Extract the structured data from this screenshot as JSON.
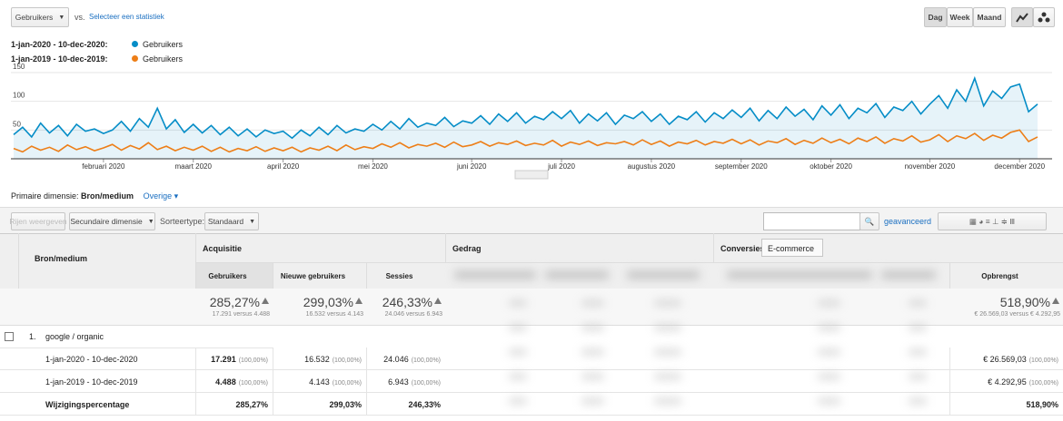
{
  "toolbar": {
    "metric": "Gebruikers",
    "vs": "vs.",
    "select_metric": "Selecteer een statistiek",
    "buttons": [
      "Dag",
      "Week",
      "Maand"
    ]
  },
  "chart_data": {
    "type": "line",
    "categories": [
      null,
      null,
      null,
      null,
      null,
      null,
      null,
      null,
      null,
      null,
      "februari 2020",
      null,
      null,
      null,
      null,
      null,
      null,
      null,
      null,
      null,
      "maart 2020",
      null,
      null,
      null,
      null,
      null,
      null,
      null,
      null,
      null,
      "april 2020",
      null,
      null,
      null,
      null,
      null,
      null,
      null,
      null,
      null,
      "mei 2020",
      null,
      null,
      null,
      null,
      null,
      null,
      null,
      null,
      null,
      null,
      "juni 2020",
      null,
      null,
      null,
      null,
      null,
      null,
      null,
      null,
      null,
      "juli 2020",
      null,
      null,
      null,
      null,
      null,
      null,
      null,
      null,
      null,
      "augustus 2020",
      null,
      null,
      null,
      null,
      null,
      null,
      null,
      null,
      null,
      "september 2020",
      null,
      null,
      null,
      null,
      null,
      null,
      null,
      null,
      null,
      "oktober 2020",
      null,
      null,
      null,
      null,
      null,
      null,
      null,
      null,
      null,
      null,
      "november 2020",
      null,
      null,
      null,
      null,
      null,
      null,
      null,
      null,
      null,
      "december 2020",
      null,
      null
    ],
    "series": [
      {
        "name": "Gebruikers",
        "period": "1-jan-2020 - 10-dec-2020:",
        "color": "#058dc7",
        "values": [
          42,
          55,
          38,
          62,
          45,
          58,
          40,
          60,
          48,
          52,
          44,
          50,
          65,
          48,
          70,
          55,
          88,
          52,
          68,
          46,
          60,
          45,
          58,
          42,
          55,
          40,
          52,
          38,
          50,
          44,
          48,
          36,
          50,
          40,
          55,
          42,
          58,
          45,
          52,
          48,
          60,
          50,
          65,
          52,
          70,
          55,
          62,
          58,
          72,
          56,
          66,
          62,
          75,
          60,
          78,
          65,
          80,
          62,
          74,
          68,
          82,
          70,
          84,
          62,
          78,
          66,
          80,
          60,
          76,
          70,
          82,
          65,
          78,
          60,
          74,
          68,
          82,
          64,
          80,
          70,
          85,
          72,
          88,
          66,
          84,
          70,
          90,
          74,
          86,
          68,
          92,
          76,
          94,
          70,
          88,
          80,
          96,
          72,
          90,
          84,
          100,
          78,
          95,
          110,
          88,
          120,
          100,
          140,
          92,
          118,
          105,
          125,
          130,
          82,
          95
        ]
      },
      {
        "name": "Gebruikers",
        "period": "1-jan-2019 - 10-dec-2019:",
        "color": "#ed7e17",
        "values": [
          18,
          12,
          22,
          15,
          20,
          13,
          24,
          16,
          21,
          14,
          19,
          25,
          15,
          23,
          17,
          28,
          16,
          22,
          14,
          20,
          15,
          22,
          13,
          20,
          12,
          18,
          14,
          21,
          13,
          19,
          14,
          20,
          12,
          19,
          15,
          22,
          14,
          24,
          16,
          21,
          18,
          26,
          20,
          28,
          19,
          25,
          22,
          27,
          20,
          29,
          21,
          24,
          30,
          22,
          28,
          25,
          31,
          23,
          27,
          24,
          32,
          22,
          29,
          25,
          31,
          23,
          28,
          26,
          30,
          24,
          33,
          25,
          31,
          22,
          29,
          26,
          32,
          24,
          30,
          27,
          34,
          26,
          33,
          24,
          31,
          28,
          35,
          25,
          32,
          27,
          36,
          28,
          34,
          26,
          36,
          30,
          38,
          27,
          35,
          31,
          40,
          29,
          33,
          42,
          30,
          40,
          35,
          44,
          32,
          41,
          36,
          46,
          50,
          30,
          38
        ]
      }
    ],
    "ylim": [
      0,
      150
    ],
    "yticks": [
      50,
      100,
      150
    ],
    "grid": true
  },
  "dimension": {
    "label": "Primaire dimensie:",
    "value": "Bron/medium",
    "other": "Overige"
  },
  "controls": {
    "rows": "Rijen weergeven",
    "secondary": "Secundaire dimensie",
    "sort_label": "Sorteertype:",
    "sort": "Standaard",
    "advanced": "geavanceerd"
  },
  "table": {
    "dimension_header": "Bron/medium",
    "groups": [
      "Acquisitie",
      "Gedrag",
      "Conversies"
    ],
    "conversion_select": "E-commerce",
    "columns": [
      "Gebruikers",
      "Nieuwe gebruikers",
      "Sessies",
      "Opbrengst"
    ],
    "summary": [
      {
        "change": "285,27%",
        "detail": "17.291 versus 4.488"
      },
      {
        "change": "299,03%",
        "detail": "16.532 versus 4.143"
      },
      {
        "change": "246,33%",
        "detail": "24.046 versus 6.943"
      },
      {
        "change": "518,90%",
        "detail": "€ 26.569,03 versus € 4.292,95"
      }
    ],
    "group_row": {
      "index": "1.",
      "label": "google / organic"
    },
    "rows": [
      {
        "label": "1-jan-2020 - 10-dec-2020",
        "cells": [
          {
            "value": "17.291",
            "share": "(100,00%)"
          },
          {
            "value": "16.532",
            "share": "(100,00%)"
          },
          {
            "value": "24.046",
            "share": "(100,00%)"
          },
          {
            "value": "€ 26.569,03",
            "share": "(100,00%)"
          }
        ]
      },
      {
        "label": "1-jan-2019 - 10-dec-2019",
        "cells": [
          {
            "value": "4.488",
            "share": "(100,00%)"
          },
          {
            "value": "4.143",
            "share": "(100,00%)"
          },
          {
            "value": "6.943",
            "share": "(100,00%)"
          },
          {
            "value": "€ 4.292,95",
            "share": "(100,00%)"
          }
        ]
      },
      {
        "label": "Wijzigingspercentage",
        "cells": [
          {
            "value": "285,27%"
          },
          {
            "value": "299,03%"
          },
          {
            "value": "246,33%"
          },
          {
            "value": "518,90%"
          }
        ]
      }
    ]
  }
}
